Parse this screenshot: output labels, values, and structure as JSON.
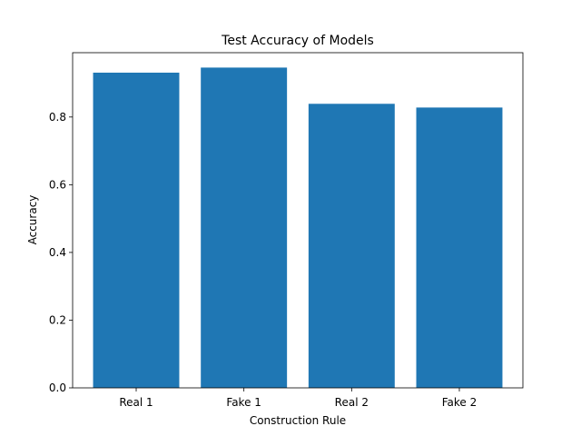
{
  "chart_data": {
    "type": "bar",
    "title": "Test Accuracy of Models",
    "xlabel": "Construction Rule",
    "ylabel": "Accuracy",
    "categories": [
      "Real 1",
      "Fake 1",
      "Real 2",
      "Fake 2"
    ],
    "values": [
      0.931,
      0.946,
      0.839,
      0.828
    ],
    "ylim": [
      0,
      0.99
    ],
    "yticks": [
      0.0,
      0.2,
      0.4,
      0.6,
      0.8
    ],
    "ytick_labels": [
      "0.0",
      "0.2",
      "0.4",
      "0.6",
      "0.8"
    ],
    "bar_color": "#1f77b4",
    "grid": false,
    "legend": "none"
  }
}
